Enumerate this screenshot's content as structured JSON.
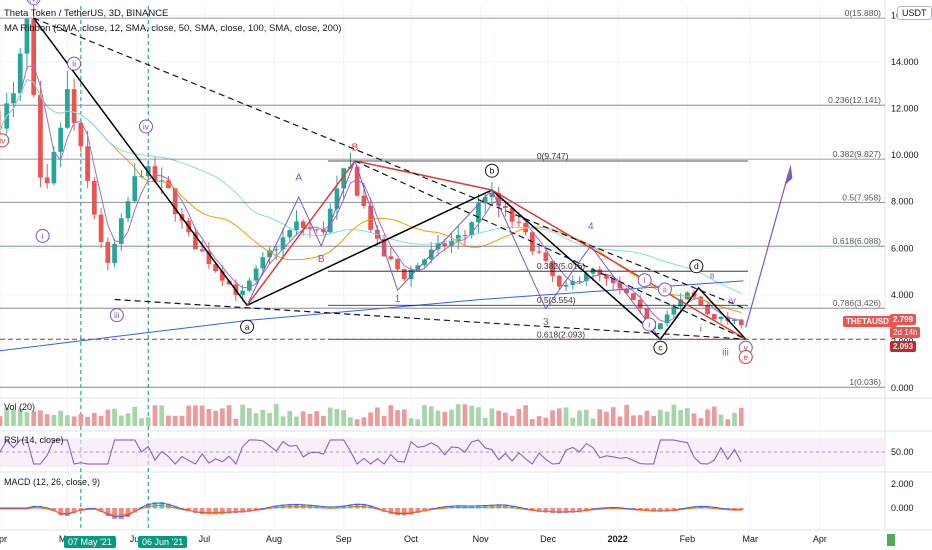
{
  "header": {
    "symbol_line": "Theta Token / TetherUS, 3D, BINANCE",
    "ribbon_line": "MA Ribbon (SMA, close, 12, SMA, close, 50, SMA, close, 100, SMA, close, 200)",
    "currency_badge": "USDT"
  },
  "panes": {
    "volume_label": "Vol (20)",
    "rsi_label": "RSI (14, close)",
    "macd_label": "MACD (12, 26, close, 9)"
  },
  "price_tags": {
    "ticker": "THETAUSDT",
    "last_price": "2.799",
    "countdown": "2d 14h",
    "level_price": "2.093"
  },
  "time_highlights": [
    "07 May '21",
    "06 Jun '21"
  ],
  "colors": {
    "up": "#26a69a",
    "down": "#ef5350",
    "ma12": "#9c6fd3",
    "ma50": "#ff9800",
    "ma100": "#80deea",
    "ma200": "#2962ff",
    "wave_red": "#e53935",
    "wave_black": "#000000",
    "wave_purple": "#7e57c2",
    "highlight_green": "#089981"
  },
  "chart_data": {
    "type": "candlestick",
    "title": "Theta Token / TetherUS, 3D, BINANCE",
    "y_axis_ticks": [
      16.0,
      14.0,
      12.0,
      10.0,
      8.0,
      6.0,
      4.0,
      2.0,
      0.0
    ],
    "ylim": [
      -0.3,
      16.4
    ],
    "x_ticks": [
      "Apr",
      "May",
      "Jun",
      "Jul",
      "Aug",
      "Sep",
      "Oct",
      "Nov",
      "Dec",
      "2022",
      "Feb",
      "Mar",
      "Apr"
    ],
    "x_range": [
      "2021-04-01",
      "2022-04-30"
    ],
    "candles_date_range": [
      "2021-04-01",
      "2022-02-26"
    ],
    "fib_levels": [
      {
        "label": "0(15.880)",
        "value": 15.88
      },
      {
        "label": "0.236(12.141)",
        "value": 12.141
      },
      {
        "label": "0.382(9.827)",
        "value": 9.827
      },
      {
        "label": "0.5(7.958)",
        "value": 7.958
      },
      {
        "label": "0.618(6.088)",
        "value": 6.088
      },
      {
        "label": "0.786(3.426)",
        "value": 3.426
      },
      {
        "label": "1(0.036)",
        "value": 0.036
      }
    ],
    "inner_fib_levels": [
      {
        "label": "0(9.747)",
        "value": 9.747
      },
      {
        "label": "0.382(5.016)",
        "value": 5.016
      },
      {
        "label": "0.5(3.554)",
        "value": 3.554
      },
      {
        "label": "0.618(2.093)",
        "value": 2.093
      }
    ],
    "wave_labels": [
      {
        "text": "(v)",
        "date": "2021-04-16",
        "price": 16.6,
        "color": "purple",
        "circled": true
      },
      {
        "text": "ii",
        "date": "2021-05-04",
        "price": 13.8,
        "color": "purple",
        "circled": true
      },
      {
        "text": "iv",
        "date": "2021-04-02",
        "price": 10.5,
        "color": "red",
        "circled": true
      },
      {
        "text": "i",
        "date": "2021-04-20",
        "price": 6.4,
        "color": "purple",
        "circled": true
      },
      {
        "text": "iii",
        "date": "2021-05-23",
        "price": 3.0,
        "color": "purple",
        "circled": true
      },
      {
        "text": "iv",
        "date": "2021-06-05",
        "price": 11.1,
        "color": "purple",
        "circled": true
      },
      {
        "text": "a",
        "date": "2021-07-20",
        "price": 2.5,
        "color": "black",
        "circled": true
      },
      {
        "text": "A",
        "date": "2021-08-12",
        "price": 8.9,
        "color": "purple",
        "circled": false
      },
      {
        "text": "B",
        "date": "2021-08-22",
        "price": 5.4,
        "color": "purple",
        "circled": false
      },
      {
        "text": "B",
        "date": "2021-09-06",
        "price": 10.2,
        "color": "red",
        "circled": false
      },
      {
        "text": "b",
        "date": "2021-11-06",
        "price": 9.2,
        "color": "black",
        "circled": true
      },
      {
        "text": "1",
        "date": "2021-09-25",
        "price": 3.7,
        "color": "purple",
        "circled": false
      },
      {
        "text": "3",
        "date": "2021-11-30",
        "price": 2.7,
        "color": "purple",
        "circled": false
      },
      {
        "text": "4",
        "date": "2021-12-20",
        "price": 6.8,
        "color": "purple",
        "circled": false
      },
      {
        "text": "i",
        "date": "2022-01-13",
        "price": 4.5,
        "color": "purple",
        "circled": true
      },
      {
        "text": "i",
        "date": "2022-01-15",
        "price": 2.6,
        "color": "purple",
        "circled": true
      },
      {
        "text": "c",
        "date": "2022-01-20",
        "price": 1.6,
        "color": "black",
        "circled": true
      },
      {
        "text": "ii",
        "date": "2022-01-22",
        "price": 4.1,
        "color": "purple",
        "circled": true
      },
      {
        "text": "d",
        "date": "2022-02-05",
        "price": 5.1,
        "color": "black",
        "circled": true
      },
      {
        "text": "ii",
        "date": "2022-02-12",
        "price": 4.7,
        "color": "purple",
        "circled": false
      },
      {
        "text": "iv",
        "date": "2022-02-21",
        "price": 3.6,
        "color": "purple",
        "circled": false
      },
      {
        "text": "i",
        "date": "2022-02-07",
        "price": 2.4,
        "color": "purple",
        "circled": false
      },
      {
        "text": "iii",
        "date": "2022-02-18",
        "price": 1.4,
        "color": "purple",
        "circled": false
      },
      {
        "text": "v",
        "date": "2022-02-27",
        "price": 1.6,
        "color": "purple",
        "circled": true
      },
      {
        "text": "e",
        "date": "2022-02-27",
        "price": 1.2,
        "color": "red",
        "circled": true
      }
    ],
    "volume_scale": [],
    "rsi_scale": [
      "50.00"
    ],
    "macd_scale": [
      "2.000",
      "0.000"
    ]
  }
}
